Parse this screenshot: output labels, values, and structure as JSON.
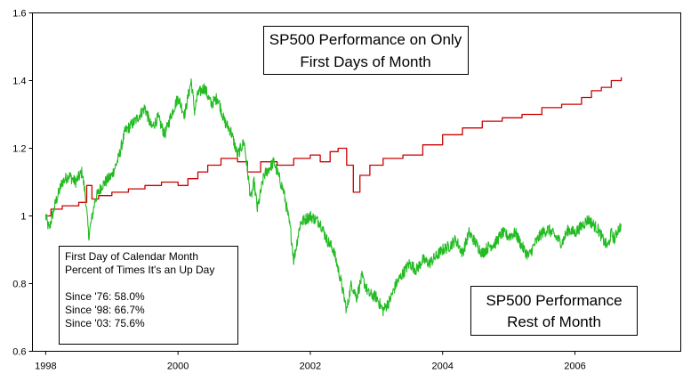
{
  "chart_data": {
    "type": "line",
    "title": "",
    "xlabel": "",
    "ylabel": "",
    "xlim": [
      1997.8,
      2007.6
    ],
    "ylim": [
      0.6,
      1.6
    ],
    "grid": false,
    "x_ticks": [
      "1998",
      "2000",
      "2002",
      "2004",
      "2006"
    ],
    "y_ticks": [
      "0.6",
      "0.8",
      "1",
      "1.2",
      "1.4",
      "1.6"
    ],
    "series": [
      {
        "name_lines": [
          "SP500 Performance on Only",
          "First Days of Month"
        ],
        "color": "#cc0000",
        "style": "step",
        "points": [
          [
            1998.0,
            1.0
          ],
          [
            1998.08,
            1.02
          ],
          [
            1998.25,
            1.03
          ],
          [
            1998.5,
            1.04
          ],
          [
            1998.62,
            1.09
          ],
          [
            1998.7,
            1.05
          ],
          [
            1998.8,
            1.06
          ],
          [
            1999.0,
            1.07
          ],
          [
            1999.25,
            1.08
          ],
          [
            1999.5,
            1.09
          ],
          [
            1999.75,
            1.1
          ],
          [
            2000.0,
            1.09
          ],
          [
            2000.15,
            1.11
          ],
          [
            2000.3,
            1.13
          ],
          [
            2000.45,
            1.15
          ],
          [
            2000.65,
            1.17
          ],
          [
            2000.9,
            1.16
          ],
          [
            2001.05,
            1.13
          ],
          [
            2001.25,
            1.16
          ],
          [
            2001.5,
            1.15
          ],
          [
            2001.75,
            1.17
          ],
          [
            2002.0,
            1.18
          ],
          [
            2002.15,
            1.16
          ],
          [
            2002.3,
            1.19
          ],
          [
            2002.42,
            1.2
          ],
          [
            2002.55,
            1.15
          ],
          [
            2002.65,
            1.07
          ],
          [
            2002.75,
            1.12
          ],
          [
            2002.9,
            1.15
          ],
          [
            2003.1,
            1.17
          ],
          [
            2003.4,
            1.18
          ],
          [
            2003.7,
            1.21
          ],
          [
            2004.0,
            1.24
          ],
          [
            2004.3,
            1.26
          ],
          [
            2004.6,
            1.28
          ],
          [
            2004.9,
            1.29
          ],
          [
            2005.2,
            1.3
          ],
          [
            2005.5,
            1.32
          ],
          [
            2005.8,
            1.33
          ],
          [
            2006.0,
            1.33
          ],
          [
            2006.1,
            1.35
          ],
          [
            2006.25,
            1.37
          ],
          [
            2006.4,
            1.38
          ],
          [
            2006.55,
            1.4
          ],
          [
            2006.7,
            1.41
          ]
        ]
      },
      {
        "name_lines": [
          "SP500 Performance",
          "Rest of Month"
        ],
        "color": "#22bb22",
        "style": "noisy",
        "points": [
          [
            1998.0,
            1.0
          ],
          [
            1998.05,
            0.96
          ],
          [
            1998.15,
            1.04
          ],
          [
            1998.25,
            1.1
          ],
          [
            1998.35,
            1.12
          ],
          [
            1998.45,
            1.1
          ],
          [
            1998.55,
            1.13
          ],
          [
            1998.6,
            1.06
          ],
          [
            1998.65,
            0.94
          ],
          [
            1998.75,
            1.05
          ],
          [
            1998.85,
            1.09
          ],
          [
            1999.0,
            1.12
          ],
          [
            1999.1,
            1.17
          ],
          [
            1999.2,
            1.25
          ],
          [
            1999.35,
            1.28
          ],
          [
            1999.5,
            1.32
          ],
          [
            1999.6,
            1.26
          ],
          [
            1999.7,
            1.29
          ],
          [
            1999.8,
            1.24
          ],
          [
            1999.9,
            1.3
          ],
          [
            2000.0,
            1.35
          ],
          [
            2000.1,
            1.3
          ],
          [
            2000.2,
            1.4
          ],
          [
            2000.25,
            1.31
          ],
          [
            2000.3,
            1.36
          ],
          [
            2000.4,
            1.38
          ],
          [
            2000.5,
            1.33
          ],
          [
            2000.6,
            1.35
          ],
          [
            2000.7,
            1.28
          ],
          [
            2000.8,
            1.25
          ],
          [
            2000.9,
            1.18
          ],
          [
            2001.0,
            1.22
          ],
          [
            2001.1,
            1.05
          ],
          [
            2001.15,
            1.1
          ],
          [
            2001.2,
            1.02
          ],
          [
            2001.3,
            1.12
          ],
          [
            2001.45,
            1.16
          ],
          [
            2001.6,
            1.07
          ],
          [
            2001.7,
            0.96
          ],
          [
            2001.75,
            0.87
          ],
          [
            2001.85,
            0.98
          ],
          [
            2002.0,
            1.0
          ],
          [
            2002.15,
            0.98
          ],
          [
            2002.25,
            0.93
          ],
          [
            2002.35,
            0.9
          ],
          [
            2002.45,
            0.82
          ],
          [
            2002.55,
            0.72
          ],
          [
            2002.62,
            0.8
          ],
          [
            2002.7,
            0.76
          ],
          [
            2002.78,
            0.82
          ],
          [
            2002.88,
            0.77
          ],
          [
            2003.0,
            0.76
          ],
          [
            2003.1,
            0.72
          ],
          [
            2003.2,
            0.75
          ],
          [
            2003.3,
            0.8
          ],
          [
            2003.4,
            0.83
          ],
          [
            2003.5,
            0.86
          ],
          [
            2003.6,
            0.84
          ],
          [
            2003.7,
            0.87
          ],
          [
            2003.8,
            0.86
          ],
          [
            2003.9,
            0.88
          ],
          [
            2004.0,
            0.9
          ],
          [
            2004.1,
            0.91
          ],
          [
            2004.2,
            0.93
          ],
          [
            2004.3,
            0.89
          ],
          [
            2004.4,
            0.95
          ],
          [
            2004.5,
            0.92
          ],
          [
            2004.6,
            0.89
          ],
          [
            2004.7,
            0.91
          ],
          [
            2004.8,
            0.92
          ],
          [
            2004.9,
            0.95
          ],
          [
            2005.0,
            0.94
          ],
          [
            2005.1,
            0.95
          ],
          [
            2005.2,
            0.91
          ],
          [
            2005.3,
            0.88
          ],
          [
            2005.4,
            0.92
          ],
          [
            2005.5,
            0.95
          ],
          [
            2005.6,
            0.96
          ],
          [
            2005.7,
            0.94
          ],
          [
            2005.8,
            0.92
          ],
          [
            2005.9,
            0.96
          ],
          [
            2006.0,
            0.95
          ],
          [
            2006.1,
            0.97
          ],
          [
            2006.2,
            0.99
          ],
          [
            2006.3,
            0.97
          ],
          [
            2006.35,
            0.96
          ],
          [
            2006.45,
            0.92
          ],
          [
            2006.5,
            0.91
          ],
          [
            2006.55,
            0.95
          ],
          [
            2006.6,
            0.93
          ],
          [
            2006.65,
            0.96
          ],
          [
            2006.7,
            0.97
          ]
        ]
      }
    ],
    "annotation": {
      "lines": [
        "First Day of Calendar Month",
        "Percent of Times It's an Up Day",
        "",
        "Since '76: 58.0%",
        "Since '98: 66.7%",
        "Since '03: 75.6%"
      ]
    },
    "colors": {
      "plot_background": "#ffffff",
      "axis": "#000000"
    }
  }
}
